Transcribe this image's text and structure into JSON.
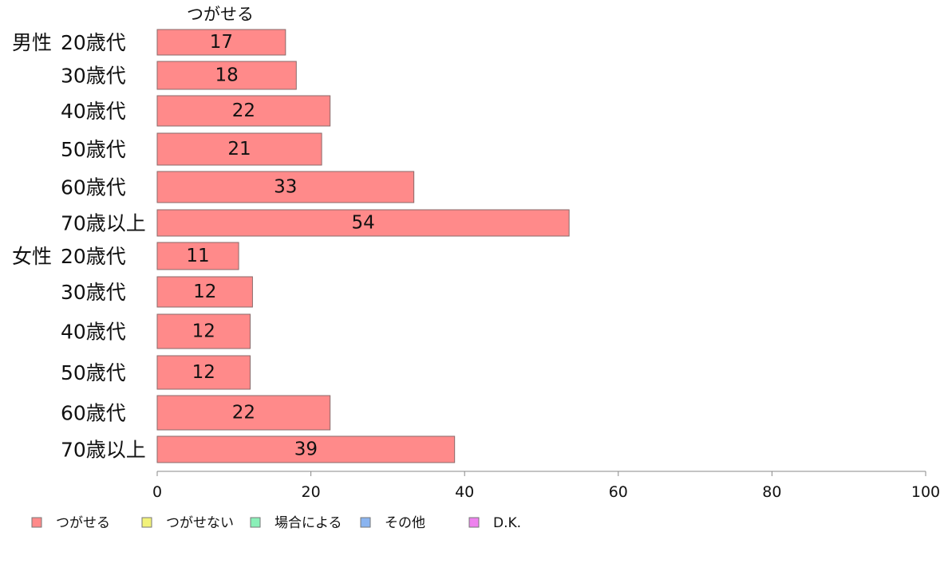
{
  "chart_data": {
    "type": "bar",
    "orientation": "horizontal",
    "series_label": "つがせる",
    "groups": [
      {
        "label": "男性",
        "start": 0
      },
      {
        "label": "女性",
        "start": 6
      }
    ],
    "categories": [
      "20歳代",
      "30歳代",
      "40歳代",
      "50歳代",
      "60歳代",
      "70歳以上",
      "20歳代",
      "30歳代",
      "40歳代",
      "50歳代",
      "60歳代",
      "70歳以上"
    ],
    "series": [
      {
        "name": "つがせる",
        "color": "#ff8a8a",
        "values": [
          16.7,
          18.1,
          22.5,
          21.4,
          33.4,
          53.6,
          10.6,
          12.4,
          12.1,
          12.1,
          22.5,
          38.7
        ]
      }
    ],
    "data_labels": [
      "17",
      "18",
      "22",
      "21",
      "33",
      "54",
      "11",
      "12",
      "12",
      "12",
      "22",
      "39"
    ],
    "xlim": [
      0,
      100
    ],
    "xticks": [
      0,
      20,
      40,
      60,
      80,
      100
    ],
    "grid": false,
    "legend_position": "bottom",
    "legend": [
      {
        "label": "つがせる",
        "color": "#ff8a8a"
      },
      {
        "label": "つがせない",
        "color": "#f2f27a"
      },
      {
        "label": "場合による",
        "color": "#8af0b8"
      },
      {
        "label": "その他",
        "color": "#8ab4f0"
      },
      {
        "label": "D.K.",
        "color": "#ee82ee"
      }
    ]
  }
}
